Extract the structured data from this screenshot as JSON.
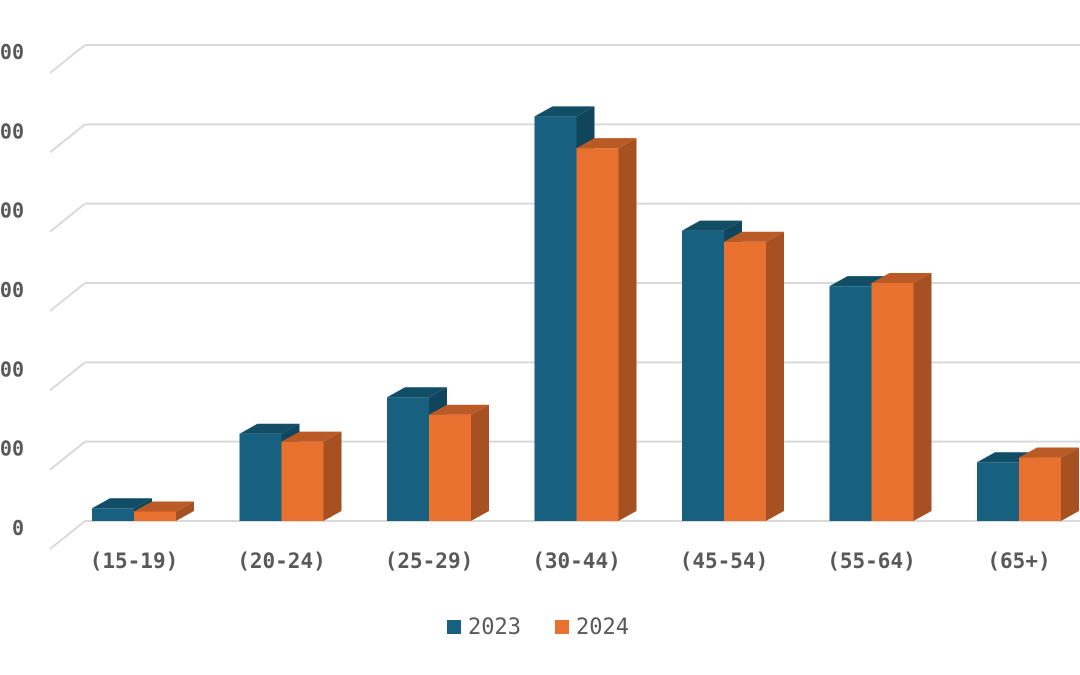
{
  "chart_data": {
    "type": "bar",
    "style": "3d-clustered-column",
    "categories": [
      "(15-19)",
      "(20-24)",
      "(25-29)",
      "(30-44)",
      "(45-54)",
      "(55-64)",
      "(65+)"
    ],
    "series": [
      {
        "name": "2023",
        "color": "#17607F",
        "values": [
          8,
          55,
          78,
          255,
          183,
          148,
          37
        ]
      },
      {
        "name": "2024",
        "color": "#E8712F",
        "values": [
          6,
          50,
          67,
          235,
          176,
          150,
          40
        ]
      }
    ],
    "yticks": [
      "0",
      "00",
      "00",
      "00",
      "00",
      "00",
      "00"
    ],
    "ylim": [
      0,
      300
    ],
    "grid": true,
    "legend": "bottom-center",
    "title": "",
    "xlabel": "",
    "ylabel": ""
  }
}
